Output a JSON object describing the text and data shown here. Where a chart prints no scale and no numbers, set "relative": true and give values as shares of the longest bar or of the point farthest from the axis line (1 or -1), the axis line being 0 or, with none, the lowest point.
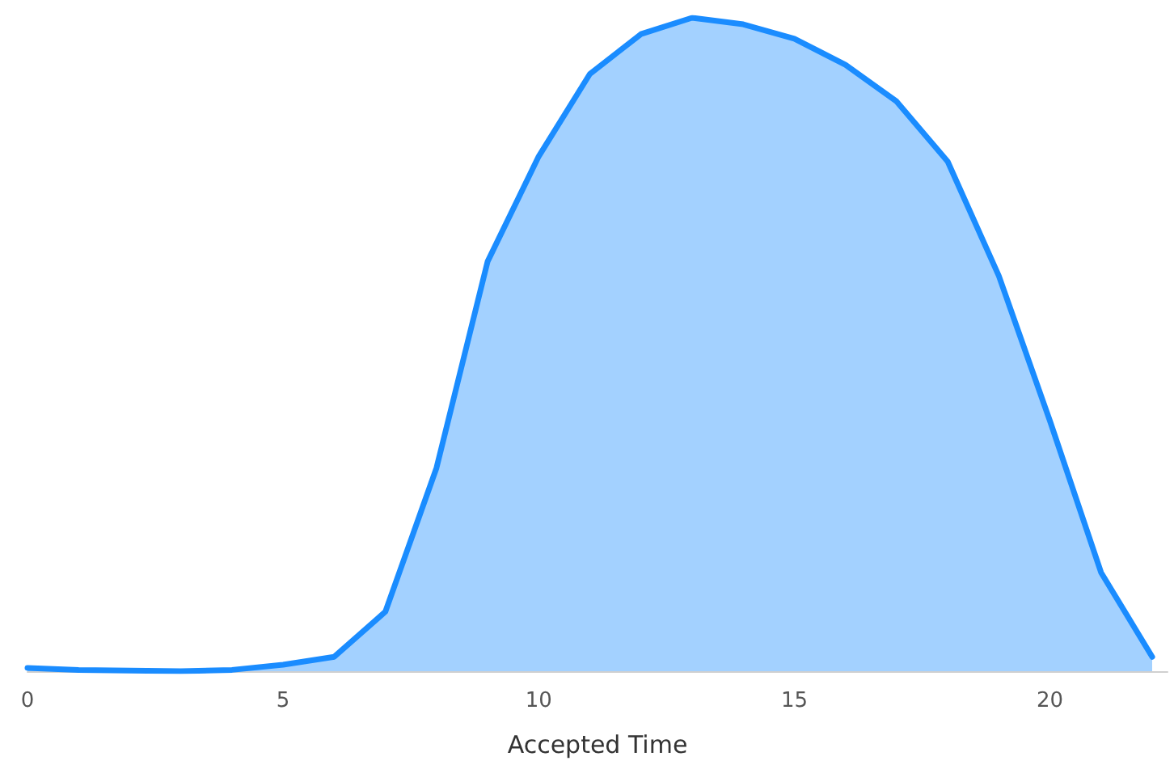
{
  "chart_data": {
    "type": "area",
    "xlabel": "Accepted Time",
    "relative": true,
    "x": [
      0,
      1,
      2,
      3,
      4,
      5,
      6,
      7,
      8,
      9,
      10,
      11,
      12,
      13,
      14,
      15,
      16,
      17,
      18,
      19,
      20,
      21,
      22
    ],
    "series": [
      {
        "color": "#1a8cff",
        "values": [
          0.005,
          0.002,
          0.001,
          0,
          0.002,
          0.01,
          0.022,
          0.091,
          0.311,
          0.627,
          0.788,
          0.914,
          0.975,
          1,
          0.99,
          0.968,
          0.928,
          0.872,
          0.78,
          0.605,
          0.383,
          0.151,
          0.022
        ]
      }
    ],
    "xlim": [
      0,
      22.3
    ],
    "xticks": [
      0,
      5,
      10,
      15,
      20
    ],
    "grid": false,
    "marker": "none",
    "line_style": "solid"
  }
}
